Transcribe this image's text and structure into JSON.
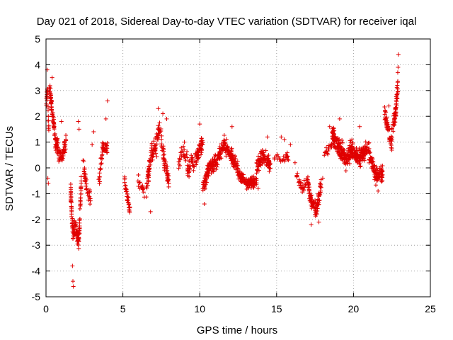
{
  "chart_data": {
    "type": "scatter",
    "title": "Day 021 of 2018, Sidereal Day-to-day VTEC variation (SDTVAR) for receiver iqal",
    "xlabel": "GPS time / hours",
    "ylabel": "SDTVAR / TECUs",
    "xlim": [
      0,
      25
    ],
    "ylim": [
      -5,
      5
    ],
    "xticks": [
      "0",
      "5",
      "10",
      "15",
      "20",
      "25"
    ],
    "yticks": [
      "-5",
      "-4",
      "-3",
      "-2",
      "-1",
      "0",
      "1",
      "2",
      "3",
      "4",
      "5"
    ],
    "grid": true,
    "marker": "+",
    "color": "#e00000",
    "segments": [
      {
        "t0": 0.0,
        "t1": 0.2,
        "p": [
          [
            0,
            2.5
          ],
          [
            0.5,
            3.0
          ],
          [
            1,
            1.0
          ]
        ],
        "n": 25,
        "spread": 0.45
      },
      {
        "t0": 0.2,
        "t1": 0.8,
        "p": [
          [
            0,
            3.3
          ],
          [
            0.35,
            2.2
          ],
          [
            0.7,
            1.0
          ],
          [
            1,
            0.8
          ]
        ],
        "n": 90,
        "spread": 0.45
      },
      {
        "t0": 0.8,
        "t1": 1.3,
        "p": [
          [
            0,
            0.6
          ],
          [
            0.5,
            0.4
          ],
          [
            1,
            1.0
          ]
        ],
        "n": 45,
        "spread": 0.4
      },
      {
        "t0": 1.6,
        "t1": 2.3,
        "p": [
          [
            0,
            -0.8
          ],
          [
            0.2,
            -2.5
          ],
          [
            0.45,
            -2.2
          ],
          [
            0.75,
            -3.0
          ],
          [
            1,
            -0.5
          ]
        ],
        "n": 130,
        "spread": 0.5
      },
      {
        "t0": 2.4,
        "t1": 2.9,
        "p": [
          [
            0,
            0.2
          ],
          [
            0.5,
            -0.8
          ],
          [
            1,
            -1.2
          ]
        ],
        "n": 40,
        "spread": 0.4
      },
      {
        "t0": 3.4,
        "t1": 4.0,
        "p": [
          [
            0,
            -0.8
          ],
          [
            0.5,
            0.9
          ],
          [
            1,
            0.7
          ]
        ],
        "n": 50,
        "spread": 0.4
      },
      {
        "t0": 5.1,
        "t1": 5.5,
        "p": [
          [
            0,
            -0.4
          ],
          [
            0.5,
            -1.2
          ],
          [
            1,
            -1.8
          ]
        ],
        "n": 35,
        "spread": 0.35
      },
      {
        "t0": 5.9,
        "t1": 6.4,
        "p": [
          [
            0,
            -0.3
          ],
          [
            1,
            -1.1
          ]
        ],
        "n": 15,
        "spread": 0.35
      },
      {
        "t0": 6.5,
        "t1": 7.2,
        "p": [
          [
            0,
            -1.0
          ],
          [
            0.4,
            0.3
          ],
          [
            0.8,
            0.9
          ],
          [
            1,
            0.5
          ]
        ],
        "n": 70,
        "spread": 0.55
      },
      {
        "t0": 7.2,
        "t1": 8.0,
        "p": [
          [
            0,
            1.2
          ],
          [
            0.3,
            1.5
          ],
          [
            0.6,
            0.2
          ],
          [
            1,
            -0.5
          ]
        ],
        "n": 80,
        "spread": 0.55
      },
      {
        "t0": 8.6,
        "t1": 9.2,
        "p": [
          [
            0,
            0.2
          ],
          [
            0.5,
            0.6
          ],
          [
            1,
            0.4
          ]
        ],
        "n": 30,
        "spread": 0.45
      },
      {
        "t0": 9.2,
        "t1": 10.2,
        "p": [
          [
            0,
            0.0
          ],
          [
            0.5,
            0.3
          ],
          [
            1,
            1.0
          ]
        ],
        "n": 90,
        "spread": 0.45
      },
      {
        "t0": 10.2,
        "t1": 11.2,
        "p": [
          [
            0,
            -0.8
          ],
          [
            0.4,
            0.0
          ],
          [
            1,
            0.3
          ]
        ],
        "n": 110,
        "spread": 0.4
      },
      {
        "t0": 11.2,
        "t1": 12.5,
        "p": [
          [
            0,
            0.4
          ],
          [
            0.3,
            0.9
          ],
          [
            0.7,
            0.4
          ],
          [
            1,
            -0.1
          ]
        ],
        "n": 140,
        "spread": 0.4
      },
      {
        "t0": 12.5,
        "t1": 13.7,
        "p": [
          [
            0,
            -0.2
          ],
          [
            0.5,
            -0.6
          ],
          [
            1,
            -0.5
          ]
        ],
        "n": 130,
        "spread": 0.3
      },
      {
        "t0": 13.7,
        "t1": 14.6,
        "p": [
          [
            0,
            0.0
          ],
          [
            0.5,
            0.5
          ],
          [
            1,
            0.1
          ]
        ],
        "n": 90,
        "spread": 0.45
      },
      {
        "t0": 14.8,
        "t1": 15.8,
        "p": [
          [
            0,
            0.6
          ],
          [
            0.5,
            0.3
          ],
          [
            1,
            0.4
          ]
        ],
        "n": 25,
        "spread": 0.3
      },
      {
        "t0": 16.3,
        "t1": 17.0,
        "p": [
          [
            0,
            -0.3
          ],
          [
            0.5,
            -0.8
          ],
          [
            1,
            -0.5
          ]
        ],
        "n": 30,
        "spread": 0.3
      },
      {
        "t0": 17.0,
        "t1": 17.9,
        "p": [
          [
            0,
            -0.5
          ],
          [
            0.3,
            -1.3
          ],
          [
            0.7,
            -1.6
          ],
          [
            1,
            -0.7
          ]
        ],
        "n": 100,
        "spread": 0.45
      },
      {
        "t0": 18.1,
        "t1": 18.6,
        "p": [
          [
            0,
            0.5
          ],
          [
            1,
            0.9
          ]
        ],
        "n": 20,
        "spread": 0.3
      },
      {
        "t0": 18.6,
        "t1": 19.9,
        "p": [
          [
            0,
            1.3
          ],
          [
            0.3,
            0.9
          ],
          [
            0.7,
            0.3
          ],
          [
            1,
            0.8
          ]
        ],
        "n": 190,
        "spread": 0.55
      },
      {
        "t0": 19.9,
        "t1": 21.0,
        "p": [
          [
            0,
            0.6
          ],
          [
            0.5,
            0.4
          ],
          [
            1,
            0.9
          ]
        ],
        "n": 140,
        "spread": 0.45
      },
      {
        "t0": 21.0,
        "t1": 21.9,
        "p": [
          [
            0,
            0.6
          ],
          [
            0.5,
            -0.3
          ],
          [
            1,
            -0.2
          ]
        ],
        "n": 100,
        "spread": 0.45
      },
      {
        "t0": 22.0,
        "t1": 22.5,
        "p": [
          [
            0,
            2.2
          ],
          [
            0.5,
            1.5
          ],
          [
            1,
            0.8
          ]
        ],
        "n": 50,
        "spread": 0.45
      },
      {
        "t0": 22.5,
        "t1": 22.9,
        "p": [
          [
            0,
            1.3
          ],
          [
            0.5,
            2.0
          ],
          [
            1,
            3.2
          ]
        ],
        "n": 60,
        "spread": 0.5
      }
    ],
    "outliers": [
      [
        0.08,
        3.8
      ],
      [
        0.12,
        -0.4
      ],
      [
        0.15,
        -0.6
      ],
      [
        0.4,
        3.5
      ],
      [
        1.0,
        1.8
      ],
      [
        1.72,
        -3.8
      ],
      [
        1.75,
        -4.4
      ],
      [
        1.78,
        -4.6
      ],
      [
        2.1,
        1.8
      ],
      [
        2.15,
        1.5
      ],
      [
        3.0,
        0.9
      ],
      [
        3.1,
        1.4
      ],
      [
        3.9,
        1.9
      ],
      [
        4.0,
        2.6
      ],
      [
        6.1,
        -0.8
      ],
      [
        6.8,
        -1.7
      ],
      [
        7.3,
        2.3
      ],
      [
        7.6,
        2.1
      ],
      [
        7.85,
        1.9
      ],
      [
        9.0,
        1.0
      ],
      [
        10.0,
        1.7
      ],
      [
        10.3,
        -1.4
      ],
      [
        12.1,
        1.6
      ],
      [
        13.8,
        -0.8
      ],
      [
        14.4,
        1.2
      ],
      [
        15.3,
        1.2
      ],
      [
        15.5,
        1.1
      ],
      [
        15.9,
        0.9
      ],
      [
        16.2,
        0.2
      ],
      [
        17.25,
        -2.2
      ],
      [
        17.75,
        -2.1
      ],
      [
        18.0,
        -0.4
      ],
      [
        18.45,
        1.6
      ],
      [
        19.1,
        1.9
      ],
      [
        20.4,
        1.6
      ],
      [
        21.6,
        -0.9
      ],
      [
        22.3,
        2.4
      ],
      [
        22.85,
        3.2
      ],
      [
        22.88,
        3.7
      ],
      [
        22.9,
        3.9
      ],
      [
        22.92,
        4.4
      ]
    ]
  }
}
